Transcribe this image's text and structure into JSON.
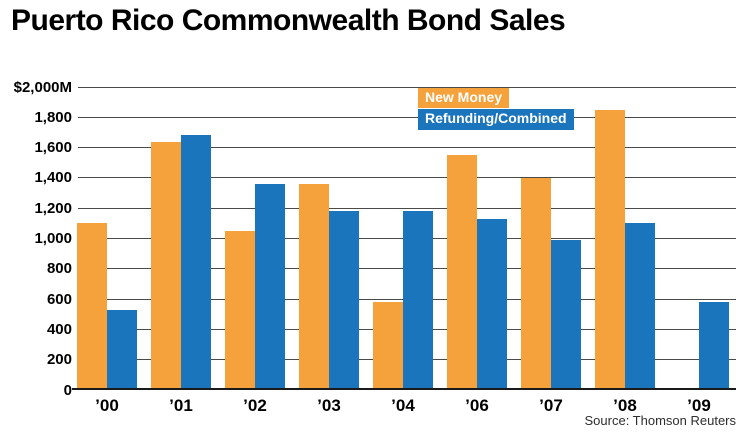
{
  "title": "Puerto Rico Commonwealth Bond Sales",
  "source": "Source: Thomson Reuters",
  "legend": {
    "new_money_label": "New Money",
    "refunding_label": "Refunding/Combined"
  },
  "colors": {
    "new_money": "#F6A23C",
    "refunding": "#1B75BC",
    "gridline": "#4A4A4A",
    "axis": "#1A1A1A"
  },
  "chart_data": {
    "type": "bar",
    "categories": [
      "’00",
      "’01",
      "’02",
      "’03",
      "’04",
      "’06",
      "’07",
      "’08",
      "’09"
    ],
    "series": [
      {
        "name": "New Money",
        "color": "#F6A23C",
        "values": [
          1100,
          1640,
          1050,
          1360,
          580,
          1550,
          1400,
          1850,
          null
        ]
      },
      {
        "name": "Refunding/Combined",
        "color": "#1B75BC",
        "values": [
          530,
          1680,
          1360,
          1180,
          1180,
          1130,
          990,
          1100,
          580
        ]
      }
    ],
    "unit": "$M",
    "ylim": [
      0,
      2000
    ],
    "yticks": [
      2000,
      1800,
      1600,
      1400,
      1200,
      1000,
      800,
      600,
      400,
      200,
      0
    ],
    "ytick_labels": [
      "$2,000M",
      "1,800",
      "1,600",
      "1,400",
      "1,200",
      "1,000",
      "800",
      "600",
      "400",
      "200",
      "0"
    ],
    "grid": "horizontal",
    "legend_position": "inside-top-center",
    "note": "Year '05 is absent from the axis; '09 shows only a Refunding/Combined bar"
  }
}
